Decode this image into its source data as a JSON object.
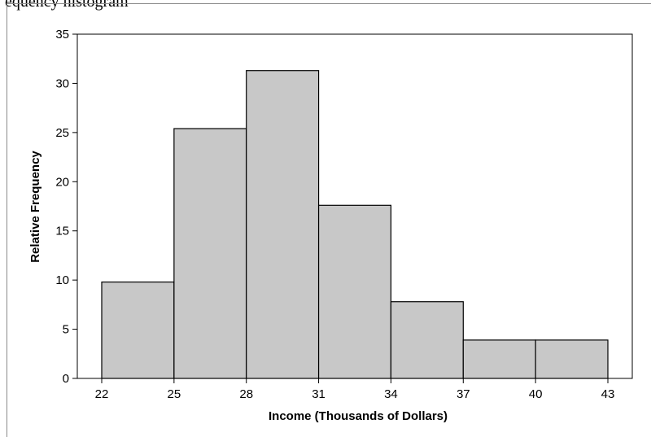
{
  "page_caption": "equency histogram",
  "chart_data": {
    "type": "bar",
    "title": "",
    "xlabel": "Income (Thousands of Dollars)",
    "ylabel": "Relative Frequency",
    "bin_edges": [
      22,
      25,
      28,
      31,
      34,
      37,
      40,
      43
    ],
    "values": [
      9.8,
      25.4,
      31.3,
      17.6,
      7.8,
      3.9,
      3.9
    ],
    "xticks": [
      22,
      25,
      28,
      31,
      34,
      37,
      40,
      43
    ],
    "yticks": [
      0,
      5,
      10,
      15,
      20,
      25,
      30,
      35
    ],
    "xlim": [
      22,
      43
    ],
    "ylim": [
      0,
      35
    ],
    "grid": false,
    "legend": "none",
    "bar_color": "#c8c8c8",
    "edge_color": "#000000"
  }
}
